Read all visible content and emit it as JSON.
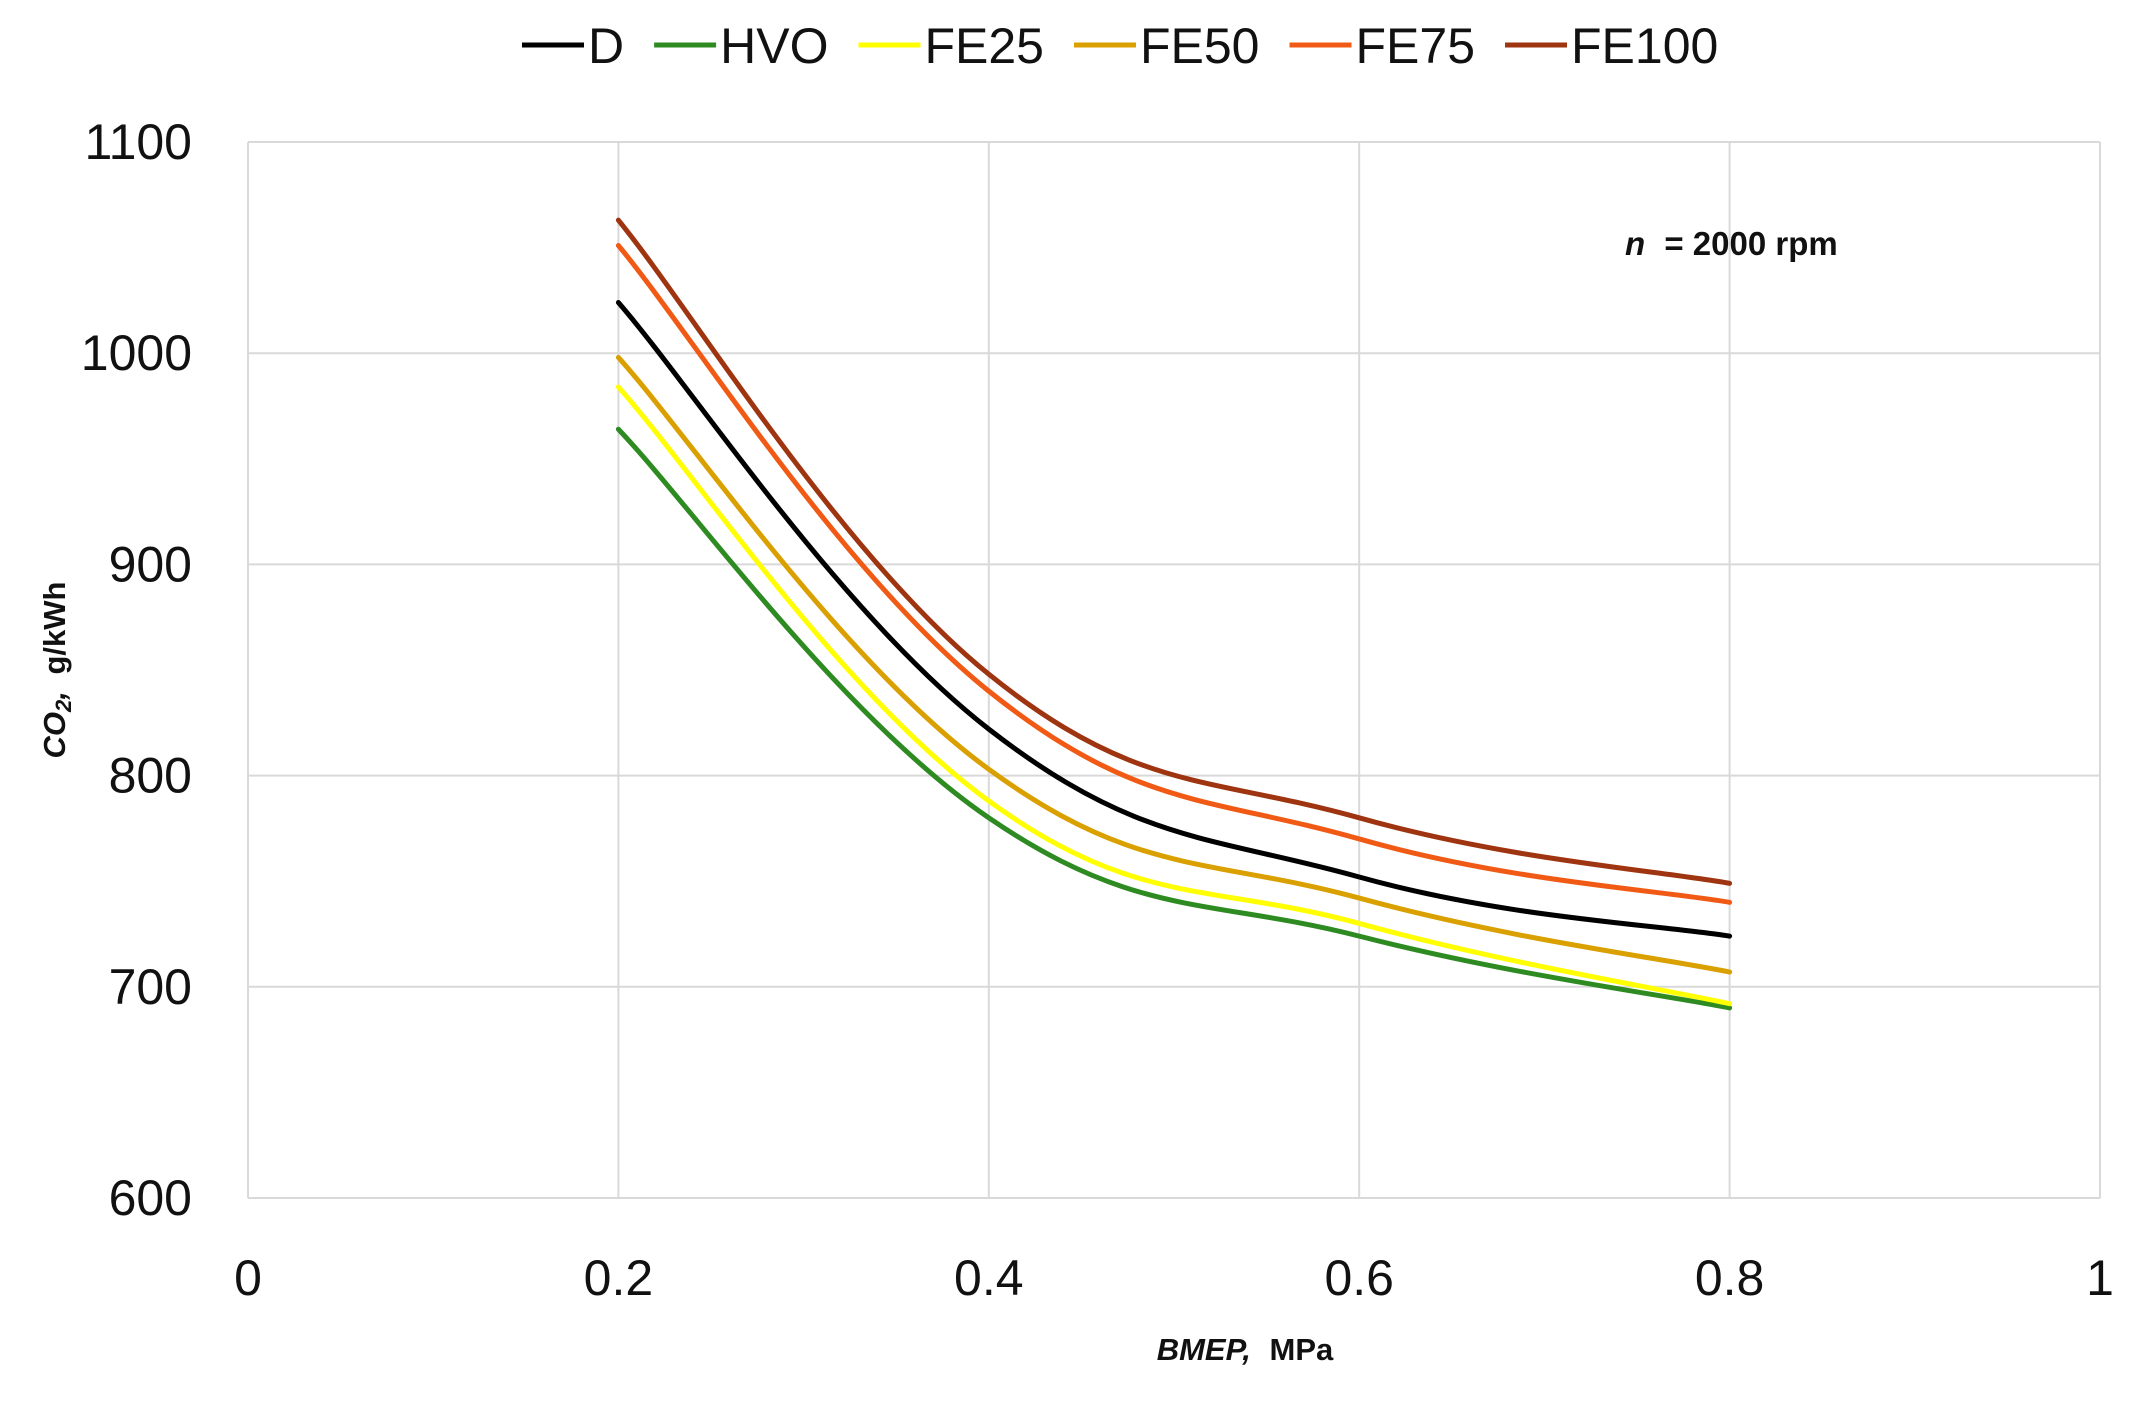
{
  "chart_data": {
    "type": "line",
    "title": "",
    "xlabel": {
      "italic": "BMEP,",
      "rest": "MPa"
    },
    "ylabel": {
      "italic": "CO",
      "sub": "2",
      "italic2": ",",
      "rest": "g/kWh"
    },
    "xlim": [
      0,
      1
    ],
    "ylim": [
      600,
      1100
    ],
    "x_ticks": [
      0,
      0.2,
      0.4,
      0.6,
      0.8,
      1
    ],
    "x_tick_labels": [
      "0",
      "0.2",
      "0.4",
      "0.6",
      "0.8",
      "1"
    ],
    "y_ticks": [
      600,
      700,
      800,
      900,
      1000,
      1100
    ],
    "y_tick_labels": [
      "600",
      "700",
      "800",
      "900",
      "1000",
      "1100"
    ],
    "grid": true,
    "legend_position": "top",
    "annotation": {
      "italic": "n",
      "rest": "= 2000 rpm"
    },
    "x": [
      0.2,
      0.4,
      0.6,
      0.8
    ],
    "series": [
      {
        "name": "D",
        "color": "#000000",
        "values": [
          1024,
          822,
          752,
          724
        ]
      },
      {
        "name": "HVO",
        "color": "#2e8b22",
        "values": [
          964,
          780,
          724,
          690
        ]
      },
      {
        "name": "FE25",
        "color": "#ffff00",
        "values": [
          984,
          788,
          730,
          692
        ]
      },
      {
        "name": "FE50",
        "color": "#d9a000",
        "values": [
          998,
          803,
          742,
          707
        ]
      },
      {
        "name": "FE75",
        "color": "#f05a14",
        "values": [
          1051,
          840,
          770,
          740
        ]
      },
      {
        "name": "FE100",
        "color": "#9e3410",
        "values": [
          1063,
          848,
          780,
          749
        ]
      }
    ]
  }
}
